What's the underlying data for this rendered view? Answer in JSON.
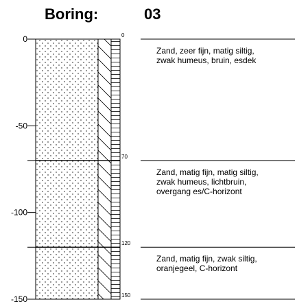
{
  "header": {
    "label": "Boring:",
    "number": "03"
  },
  "depth_axis": {
    "lim": [
      0,
      -150
    ],
    "ticks": [
      0,
      -50,
      -100,
      -150
    ]
  },
  "boundaries": [
    0,
    70,
    120,
    150
  ],
  "layers": [
    {
      "description": [
        "Zand, zeer fijn, matig siltig,",
        "zwak humeus, bruin, esdek"
      ]
    },
    {
      "description": [
        "Zand, matig fijn, matig siltig,",
        "zwak humeus, lichtbruin,",
        "overgang es/C-horizont"
      ]
    },
    {
      "description": [
        "Zand, matig fijn, zwak siltig,",
        "oranjegeel, C-horizont"
      ]
    }
  ]
}
